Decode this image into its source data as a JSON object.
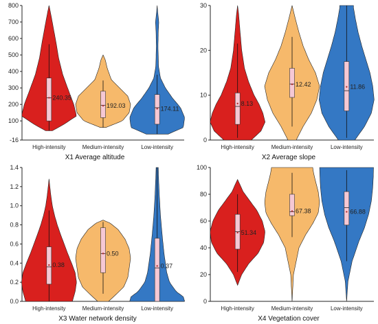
{
  "colors": {
    "high": "#d9201e",
    "medium": "#f6b96b",
    "low": "#3478c4",
    "box": "#f6c8d4",
    "axis": "#222222"
  },
  "chart_data": [
    {
      "type": "violin",
      "title": "X1 Average altitude",
      "categories": [
        "High-intensity",
        "Medium-intensity",
        "Low-intensity"
      ],
      "ylim": [
        -16,
        800
      ],
      "yticks": [
        -16,
        100,
        200,
        300,
        400,
        500,
        600,
        700,
        800
      ],
      "yticklabels": [
        "-16",
        "100",
        "200",
        "300",
        "400",
        "500",
        "600",
        "700",
        "800"
      ],
      "series": [
        {
          "min": 40,
          "max": 800,
          "q1": 100,
          "q3": 360,
          "wlo": 40,
          "whi": 565,
          "median": 240,
          "mean": 240.35,
          "mean_label": "240.35",
          "profile": [
            [
              40,
              0.12
            ],
            [
              80,
              0.55
            ],
            [
              130,
              1.0
            ],
            [
              200,
              0.9
            ],
            [
              280,
              0.72
            ],
            [
              380,
              0.5
            ],
            [
              480,
              0.35
            ],
            [
              580,
              0.25
            ],
            [
              680,
              0.14
            ],
            [
              760,
              0.05
            ],
            [
              800,
              0
            ]
          ]
        },
        {
          "min": 60,
          "max": 500,
          "q1": 120,
          "q3": 280,
          "wlo": 60,
          "whi": 345,
          "median": 195,
          "mean": 192.03,
          "mean_label": "192.03",
          "profile": [
            [
              60,
              0.1
            ],
            [
              100,
              0.7
            ],
            [
              150,
              0.95
            ],
            [
              200,
              1.0
            ],
            [
              250,
              0.9
            ],
            [
              300,
              0.6
            ],
            [
              350,
              0.3
            ],
            [
              420,
              0.15
            ],
            [
              470,
              0.08
            ],
            [
              500,
              0
            ]
          ]
        },
        {
          "min": 20,
          "max": 800,
          "q1": 80,
          "q3": 260,
          "wlo": 20,
          "whi": 380,
          "median": 180,
          "mean": 174.11,
          "mean_label": "174.11",
          "profile": [
            [
              20,
              0.4
            ],
            [
              60,
              0.95
            ],
            [
              120,
              1.0
            ],
            [
              180,
              0.85
            ],
            [
              240,
              0.55
            ],
            [
              300,
              0.3
            ],
            [
              360,
              0.12
            ],
            [
              430,
              0.05
            ],
            [
              550,
              0.03
            ],
            [
              640,
              0.04
            ],
            [
              700,
              0.06
            ],
            [
              760,
              0.02
            ],
            [
              800,
              0
            ]
          ]
        }
      ]
    },
    {
      "type": "violin",
      "title": "X2 Average slope",
      "categories": [
        "High-intensity",
        "Medium-intensity",
        "Low-intensity"
      ],
      "ylim": [
        0,
        30
      ],
      "yticks": [
        0,
        10,
        20,
        30
      ],
      "yticklabels": [
        "0",
        "10",
        "20",
        "30"
      ],
      "series": [
        {
          "min": 0,
          "max": 30,
          "q1": 3.5,
          "q3": 10.5,
          "wlo": 0.5,
          "whi": 21.5,
          "median": 7.5,
          "mean": 8.13,
          "mean_label": "8.13",
          "profile": [
            [
              0,
              0.5
            ],
            [
              2,
              0.85
            ],
            [
              4,
              1.0
            ],
            [
              6,
              0.92
            ],
            [
              8,
              0.78
            ],
            [
              10,
              0.6
            ],
            [
              13,
              0.4
            ],
            [
              16,
              0.25
            ],
            [
              20,
              0.15
            ],
            [
              25,
              0.08
            ],
            [
              28,
              0.04
            ],
            [
              30,
              0
            ]
          ]
        },
        {
          "min": 0,
          "max": 30,
          "q1": 9.5,
          "q3": 16.0,
          "wlo": 3,
          "whi": 23,
          "median": 12.5,
          "mean": 12.42,
          "mean_label": "12.42",
          "profile": [
            [
              0,
              0.15
            ],
            [
              3,
              0.4
            ],
            [
              6,
              0.7
            ],
            [
              9,
              0.9
            ],
            [
              12,
              1.0
            ],
            [
              15,
              0.85
            ],
            [
              18,
              0.6
            ],
            [
              21,
              0.4
            ],
            [
              24,
              0.25
            ],
            [
              27,
              0.12
            ],
            [
              30,
              0
            ]
          ]
        },
        {
          "min": 0,
          "max": 30,
          "q1": 6.5,
          "q3": 17.5,
          "wlo": 0.5,
          "whi": 30,
          "median": 11.0,
          "mean": 11.86,
          "mean_label": "11.86",
          "profile": [
            [
              0,
              0.3
            ],
            [
              3,
              0.65
            ],
            [
              6,
              0.9
            ],
            [
              9,
              1.0
            ],
            [
              12,
              0.95
            ],
            [
              15,
              0.85
            ],
            [
              18,
              0.7
            ],
            [
              21,
              0.55
            ],
            [
              24,
              0.42
            ],
            [
              27,
              0.32
            ],
            [
              29.5,
              0.25
            ],
            [
              30,
              0.25
            ]
          ]
        }
      ]
    },
    {
      "type": "violin",
      "title": "X3 Water network density",
      "categories": [
        "High-intensity",
        "Medium-intensity",
        "Low-intensity"
      ],
      "ylim": [
        0,
        1.4
      ],
      "yticks": [
        0,
        0.2,
        0.4,
        0.6,
        0.8,
        1.0,
        1.2,
        1.4
      ],
      "yticklabels": [
        "0.0",
        "0.2",
        "0.4",
        "0.6",
        "0.8",
        "1.0",
        "1.2",
        "1.4"
      ],
      "series": [
        {
          "min": 0,
          "max": 1.28,
          "q1": 0.18,
          "q3": 0.57,
          "wlo": 0.0,
          "whi": 0.95,
          "median": 0.36,
          "mean": 0.38,
          "mean_label": "0.38",
          "profile": [
            [
              0,
              0.85
            ],
            [
              0.1,
              0.95
            ],
            [
              0.2,
              1.0
            ],
            [
              0.3,
              0.95
            ],
            [
              0.4,
              0.82
            ],
            [
              0.5,
              0.68
            ],
            [
              0.6,
              0.55
            ],
            [
              0.7,
              0.42
            ],
            [
              0.8,
              0.3
            ],
            [
              0.9,
              0.2
            ],
            [
              1.0,
              0.12
            ],
            [
              1.1,
              0.07
            ],
            [
              1.2,
              0.03
            ],
            [
              1.28,
              0
            ]
          ]
        },
        {
          "min": 0,
          "max": 0.85,
          "q1": 0.3,
          "q3": 0.77,
          "wlo": 0.08,
          "whi": 0.83,
          "median": 0.5,
          "mean": 0.5,
          "mean_label": "0.50",
          "profile": [
            [
              0,
              0.2
            ],
            [
              0.08,
              0.5
            ],
            [
              0.15,
              0.75
            ],
            [
              0.25,
              0.9
            ],
            [
              0.35,
              0.95
            ],
            [
              0.45,
              1.0
            ],
            [
              0.55,
              0.95
            ],
            [
              0.65,
              0.8
            ],
            [
              0.75,
              0.55
            ],
            [
              0.82,
              0.25
            ],
            [
              0.85,
              0
            ]
          ]
        },
        {
          "min": 0,
          "max": 1.4,
          "q1": 0.0,
          "q3": 0.66,
          "wlo": 0.0,
          "whi": 1.4,
          "median": 0.35,
          "mean": 0.37,
          "mean_label": "0.37",
          "profile": [
            [
              0,
              1.0
            ],
            [
              0.05,
              0.95
            ],
            [
              0.1,
              0.7
            ],
            [
              0.2,
              0.45
            ],
            [
              0.3,
              0.35
            ],
            [
              0.4,
              0.3
            ],
            [
              0.5,
              0.25
            ],
            [
              0.7,
              0.18
            ],
            [
              0.9,
              0.12
            ],
            [
              1.1,
              0.08
            ],
            [
              1.3,
              0.05
            ],
            [
              1.4,
              0.04
            ]
          ]
        }
      ]
    },
    {
      "type": "violin",
      "title": "X4 Vegetation cover",
      "categories": [
        "High-intensity",
        "Medium-intensity",
        "Low-intensity"
      ],
      "ylim": [
        0,
        100
      ],
      "yticks": [
        0,
        20,
        40,
        60,
        80,
        100
      ],
      "yticklabels": [
        "0",
        "20",
        "40",
        "60",
        "80",
        "100"
      ],
      "series": [
        {
          "min": 12,
          "max": 91,
          "q1": 39,
          "q3": 65,
          "wlo": 22,
          "whi": 80,
          "median": 52,
          "mean": 51.34,
          "mean_label": "51.34",
          "profile": [
            [
              12,
              0
            ],
            [
              20,
              0.15
            ],
            [
              28,
              0.4
            ],
            [
              36,
              0.75
            ],
            [
              44,
              0.95
            ],
            [
              52,
              1.0
            ],
            [
              60,
              0.9
            ],
            [
              68,
              0.7
            ],
            [
              75,
              0.45
            ],
            [
              82,
              0.2
            ],
            [
              88,
              0.07
            ],
            [
              91,
              0
            ]
          ]
        },
        {
          "min": 0,
          "max": 100,
          "q1": 64,
          "q3": 80,
          "wlo": 48,
          "whi": 96,
          "median": 67,
          "mean": 67.38,
          "mean_label": "67.38",
          "profile": [
            [
              0,
              0
            ],
            [
              20,
              0.05
            ],
            [
              40,
              0.25
            ],
            [
              50,
              0.5
            ],
            [
              58,
              0.75
            ],
            [
              66,
              0.95
            ],
            [
              74,
              1.0
            ],
            [
              82,
              0.95
            ],
            [
              90,
              0.85
            ],
            [
              96,
              0.78
            ],
            [
              100,
              0.75
            ]
          ]
        },
        {
          "min": 0,
          "max": 100,
          "q1": 57,
          "q3": 82,
          "wlo": 30,
          "whi": 98,
          "median": 70,
          "mean": 66.88,
          "mean_label": "66.88",
          "profile": [
            [
              0,
              0
            ],
            [
              15,
              0.05
            ],
            [
              30,
              0.2
            ],
            [
              45,
              0.45
            ],
            [
              55,
              0.65
            ],
            [
              65,
              0.8
            ],
            [
              75,
              0.9
            ],
            [
              85,
              0.95
            ],
            [
              93,
              0.97
            ],
            [
              100,
              0.98
            ]
          ]
        }
      ]
    }
  ]
}
